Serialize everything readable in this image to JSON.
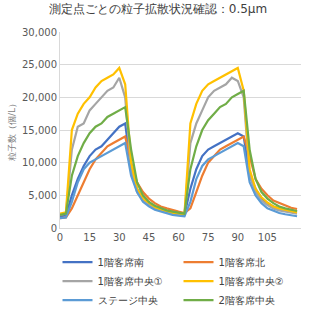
{
  "chart_data": {
    "type": "line",
    "title": "測定点ごとの粒子拡散状況確認：0.5μm",
    "y_label": "粒子数（個/L）",
    "x": [
      0,
      3,
      6,
      9,
      12,
      15,
      18,
      21,
      24,
      27,
      30,
      33,
      36,
      39,
      42,
      45,
      48,
      51,
      54,
      57,
      60,
      63,
      66,
      69,
      72,
      75,
      78,
      81,
      84,
      87,
      90,
      93,
      96,
      99,
      102,
      105,
      108,
      111,
      114,
      117,
      120
    ],
    "xlim": [
      0,
      122
    ],
    "xticks": [
      0,
      15,
      30,
      45,
      60,
      75,
      90,
      105
    ],
    "ylim": [
      0,
      30000
    ],
    "yticks": [
      0,
      {
        "value": 5000,
        "label": "5,000"
      },
      {
        "value": 10000,
        "label": "10,000"
      },
      {
        "value": 15000,
        "label": "15,000"
      },
      {
        "value": 20000,
        "label": "20,000"
      },
      {
        "value": 25000,
        "label": "25,000"
      },
      {
        "value": 30000,
        "label": "30,000"
      }
    ],
    "grid": true,
    "legend": "bottom",
    "series": [
      {
        "name": "1階客席南",
        "color": "#4472C4",
        "values": [
          1800,
          1900,
          5000,
          7500,
          9500,
          11000,
          12000,
          12500,
          13500,
          14500,
          15500,
          16000,
          9000,
          6000,
          4500,
          3800,
          3200,
          2800,
          2500,
          2300,
          2200,
          2000,
          6000,
          9000,
          11000,
          12000,
          12500,
          13000,
          13500,
          14000,
          14500,
          14000,
          8000,
          6000,
          4500,
          3800,
          3300,
          3000,
          2800,
          2600,
          2500
        ]
      },
      {
        "name": "1階客席北",
        "color": "#ED7D31",
        "values": [
          1500,
          1600,
          3000,
          5000,
          7000,
          9000,
          10500,
          11500,
          12500,
          13000,
          13500,
          14000,
          10000,
          7000,
          5500,
          4500,
          3800,
          3300,
          3000,
          2700,
          2500,
          2300,
          3000,
          5500,
          8000,
          10000,
          11000,
          12000,
          12500,
          13000,
          13500,
          14000,
          11000,
          7500,
          6000,
          5000,
          4200,
          3800,
          3400,
          3100,
          2900
        ]
      },
      {
        "name": "1階客席中央①",
        "color": "#A5A5A5",
        "values": [
          2000,
          2200,
          12000,
          15500,
          16000,
          18000,
          19000,
          20000,
          21000,
          21500,
          23000,
          20000,
          9000,
          5500,
          4200,
          3500,
          3000,
          2700,
          2400,
          2200,
          2100,
          2000,
          13000,
          16000,
          18000,
          20000,
          21000,
          21500,
          22000,
          23000,
          22500,
          20000,
          8000,
          5500,
          4200,
          3500,
          3000,
          2700,
          2500,
          2300,
          2200
        ]
      },
      {
        "name": "1階客席中央②",
        "color": "#FFC000",
        "values": [
          2200,
          2400,
          15000,
          17500,
          19000,
          20000,
          21500,
          22500,
          23000,
          23500,
          24500,
          22000,
          10000,
          6000,
          4500,
          3800,
          3200,
          2800,
          2500,
          2300,
          2200,
          2100,
          16000,
          19000,
          21000,
          22000,
          22500,
          23000,
          23500,
          24000,
          24500,
          21000,
          9000,
          6000,
          4700,
          3900,
          3300,
          3000,
          2800,
          2600,
          2400
        ]
      },
      {
        "name": "ステージ中央",
        "color": "#5B9BD5",
        "values": [
          1500,
          1600,
          4000,
          7000,
          9000,
          10000,
          10500,
          11000,
          11500,
          12000,
          12500,
          13000,
          8000,
          5500,
          4000,
          3300,
          2800,
          2500,
          2200,
          2000,
          1900,
          1800,
          4000,
          7500,
          9500,
          10500,
          11000,
          11500,
          12000,
          12500,
          13000,
          12500,
          7000,
          5000,
          3800,
          3000,
          2600,
          2300,
          2100,
          1900,
          1800
        ]
      },
      {
        "name": "2階客席中央",
        "color": "#70AD47",
        "values": [
          2000,
          2200,
          8000,
          11000,
          13000,
          14500,
          15500,
          16000,
          17000,
          17500,
          18000,
          18500,
          12000,
          7000,
          5000,
          4000,
          3400,
          3000,
          2700,
          2500,
          2300,
          2200,
          9000,
          12500,
          15000,
          16500,
          17500,
          18500,
          19000,
          20000,
          20500,
          21000,
          12000,
          7500,
          5500,
          4500,
          3800,
          3300,
          3000,
          2800,
          2600
        ]
      }
    ]
  }
}
